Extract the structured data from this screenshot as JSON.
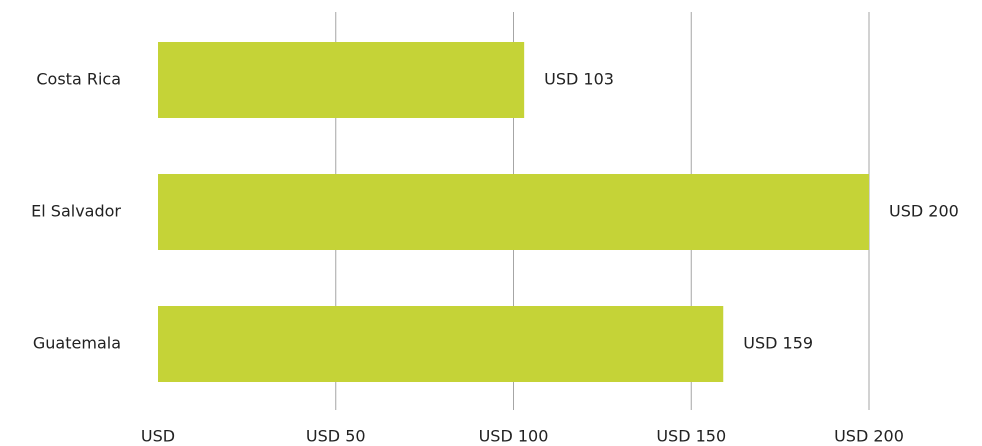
{
  "chart_data": {
    "type": "bar",
    "orientation": "horizontal",
    "categories": [
      "Costa Rica",
      "El Salvador",
      "Guatemala"
    ],
    "values": [
      103,
      200,
      159
    ],
    "value_labels": [
      "USD 103",
      "USD 200",
      "USD 159"
    ],
    "color": "#c5d337",
    "xlim": [
      0,
      200
    ],
    "xticks": [
      {
        "value": 0,
        "label": "USD"
      },
      {
        "value": 50,
        "label": "USD 50"
      },
      {
        "value": 100,
        "label": "USD 100"
      },
      {
        "value": 150,
        "label": "USD 150"
      },
      {
        "value": 200,
        "label": "USD 200"
      }
    ],
    "grid": true
  }
}
